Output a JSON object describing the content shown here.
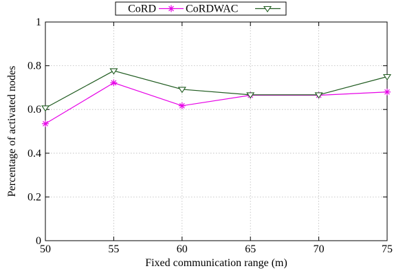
{
  "chart_data": {
    "type": "line",
    "title": "",
    "xlabel": "Fixed communication range (m)",
    "ylabel": "Percentage of activated nodes",
    "x": [
      50,
      55,
      60,
      65,
      70,
      75
    ],
    "xlim": [
      50,
      75
    ],
    "ylim": [
      0,
      1
    ],
    "xticks": [
      "50",
      "55",
      "60",
      "65",
      "70",
      "75"
    ],
    "yticks": [
      "0",
      "0.2",
      "0.4",
      "0.6",
      "0.8",
      "1"
    ],
    "grid": true,
    "legend_position": "top-center",
    "series": [
      {
        "name": "CoRD",
        "marker": "asterisk",
        "color": "#e600e6",
        "values": [
          0.535,
          0.722,
          0.617,
          0.665,
          0.665,
          0.68
        ]
      },
      {
        "name": "CoRDWAC",
        "marker": "triangle-down",
        "color": "#1e5a1e",
        "values": [
          0.607,
          0.777,
          0.692,
          0.667,
          0.667,
          0.75
        ]
      }
    ]
  }
}
